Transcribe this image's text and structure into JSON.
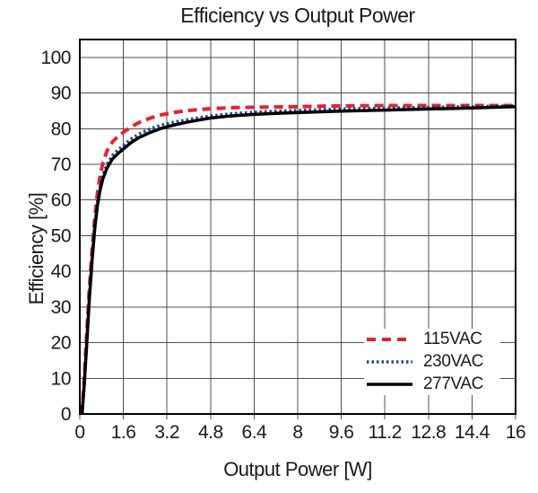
{
  "chart_data": {
    "type": "line",
    "title": "Efficiency vs Output Power",
    "xlabel": "Output Power [W]",
    "ylabel": "Efficiency [%]",
    "xlim": [
      0,
      16
    ],
    "ylim": [
      0,
      105
    ],
    "x_ticks": [
      0,
      1.6,
      3.2,
      4.8,
      6.4,
      8,
      9.6,
      11.2,
      12.8,
      14.4,
      16
    ],
    "x_tick_labels": [
      "0",
      "1.6",
      "3.2",
      "4.8",
      "6.4",
      "8",
      "9.6",
      "11.2",
      "12.8",
      "14.4",
      "16"
    ],
    "y_ticks": [
      0,
      10,
      20,
      30,
      40,
      50,
      60,
      70,
      80,
      90,
      100
    ],
    "y_tick_labels": [
      "0",
      "10",
      "20",
      "30",
      "40",
      "50",
      "60",
      "70",
      "80",
      "90",
      "100"
    ],
    "grid": true,
    "legend_position": "inside-lower-right",
    "colors": {
      "background": "#ffffff",
      "grid": "#4f4f4f",
      "frame": "#000000",
      "text": "#1a1a1a"
    },
    "series": [
      {
        "name": "115VAC",
        "color": "#e2242f",
        "style": "dashed",
        "points": [
          [
            0.08,
            0
          ],
          [
            0.15,
            8
          ],
          [
            0.25,
            22
          ],
          [
            0.35,
            35
          ],
          [
            0.45,
            46
          ],
          [
            0.55,
            55
          ],
          [
            0.65,
            62
          ],
          [
            0.75,
            67
          ],
          [
            0.85,
            70.5
          ],
          [
            1.0,
            73.8
          ],
          [
            1.2,
            76.3
          ],
          [
            1.4,
            77.8
          ],
          [
            1.6,
            79
          ],
          [
            1.9,
            80.6
          ],
          [
            2.2,
            81.8
          ],
          [
            2.6,
            83
          ],
          [
            3.0,
            83.9
          ],
          [
            3.5,
            84.6
          ],
          [
            4.0,
            85.1
          ],
          [
            4.8,
            85.6
          ],
          [
            5.6,
            85.9
          ],
          [
            6.4,
            86
          ],
          [
            7.2,
            86.1
          ],
          [
            8.0,
            86.2
          ],
          [
            9.6,
            86.4
          ],
          [
            11.2,
            86.5
          ],
          [
            12.8,
            86.5
          ],
          [
            14.4,
            86.5
          ],
          [
            16,
            86.5
          ]
        ]
      },
      {
        "name": "230VAC",
        "color": "#1f4699",
        "style": "dotted",
        "points": [
          [
            0.08,
            0
          ],
          [
            0.15,
            7
          ],
          [
            0.25,
            20
          ],
          [
            0.35,
            33
          ],
          [
            0.45,
            44
          ],
          [
            0.55,
            53
          ],
          [
            0.65,
            59.5
          ],
          [
            0.75,
            64
          ],
          [
            0.85,
            67
          ],
          [
            1.0,
            70
          ],
          [
            1.2,
            72.5
          ],
          [
            1.4,
            74
          ],
          [
            1.6,
            75.3
          ],
          [
            1.9,
            77.2
          ],
          [
            2.2,
            78.6
          ],
          [
            2.6,
            80
          ],
          [
            3.0,
            81
          ],
          [
            3.5,
            81.9
          ],
          [
            4.0,
            82.6
          ],
          [
            4.8,
            83.6
          ],
          [
            5.6,
            84.2
          ],
          [
            6.4,
            84.6
          ],
          [
            7.2,
            84.9
          ],
          [
            8.0,
            85.1
          ],
          [
            9.6,
            85.5
          ],
          [
            11.2,
            85.8
          ],
          [
            12.8,
            86
          ],
          [
            14.4,
            86.2
          ],
          [
            16,
            86.4
          ]
        ]
      },
      {
        "name": "277VAC",
        "color": "#000000",
        "style": "solid",
        "points": [
          [
            0.08,
            0
          ],
          [
            0.15,
            7
          ],
          [
            0.25,
            19
          ],
          [
            0.35,
            32
          ],
          [
            0.45,
            43
          ],
          [
            0.55,
            52
          ],
          [
            0.65,
            58.5
          ],
          [
            0.75,
            63
          ],
          [
            0.85,
            66
          ],
          [
            1.0,
            69
          ],
          [
            1.2,
            71.5
          ],
          [
            1.4,
            73
          ],
          [
            1.6,
            74.3
          ],
          [
            1.9,
            76.2
          ],
          [
            2.2,
            77.6
          ],
          [
            2.6,
            79
          ],
          [
            3.0,
            80.1
          ],
          [
            3.5,
            81.1
          ],
          [
            4.0,
            81.9
          ],
          [
            4.8,
            83
          ],
          [
            5.6,
            83.6
          ],
          [
            6.4,
            84
          ],
          [
            7.2,
            84.3
          ],
          [
            8.0,
            84.5
          ],
          [
            9.6,
            84.9
          ],
          [
            11.2,
            85.2
          ],
          [
            12.8,
            85.5
          ],
          [
            14.4,
            85.8
          ],
          [
            16,
            86.2
          ]
        ]
      }
    ]
  }
}
